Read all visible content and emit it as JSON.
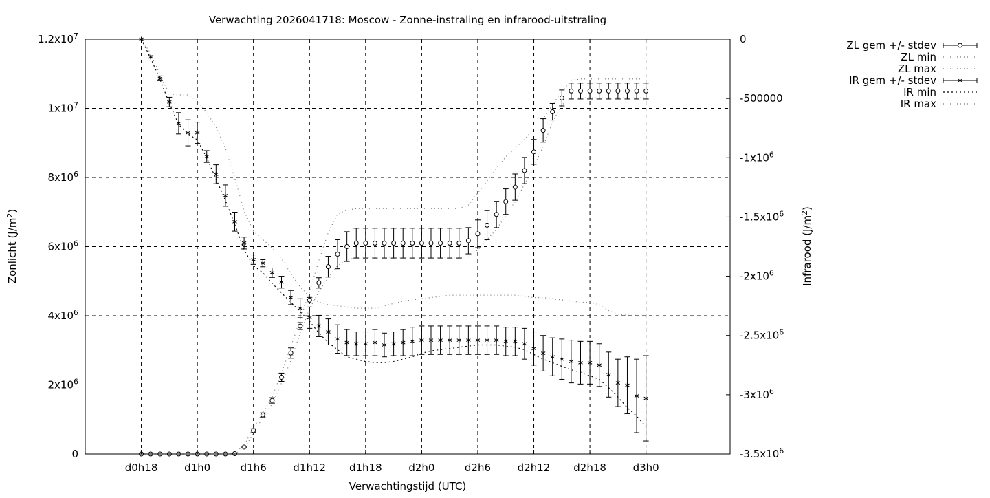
{
  "chart_data": {
    "type": "line",
    "title": "Verwachting 2026041718: Moscow - Zonne-instraling en infrarood-uitstraling",
    "xlabel": "Verwachtingstijd (UTC)",
    "ylabel": "Zonlicht (J/m2)",
    "y2label": "Infrarood (J/m2)",
    "x_unit": "hours since d0h18",
    "xlim": [
      -6,
      63
    ],
    "ylim": [
      0,
      12000000
    ],
    "y2lim": [
      -3500000,
      0
    ],
    "grid": true,
    "legend_position": "top-right outside plot",
    "x_ticks": [
      {
        "x": 0,
        "label": "d0h18"
      },
      {
        "x": 6,
        "label": "d1h0"
      },
      {
        "x": 12,
        "label": "d1h6"
      },
      {
        "x": 18,
        "label": "d1h12"
      },
      {
        "x": 24,
        "label": "d1h18"
      },
      {
        "x": 30,
        "label": "d2h0"
      },
      {
        "x": 36,
        "label": "d2h6"
      },
      {
        "x": 42,
        "label": "d2h12"
      },
      {
        "x": 48,
        "label": "d2h18"
      },
      {
        "x": 54,
        "label": "d3h0"
      }
    ],
    "y_ticks": [
      {
        "value": 0,
        "mant": "0",
        "exp": ""
      },
      {
        "value": 2000000,
        "mant": "2x10",
        "exp": "6"
      },
      {
        "value": 4000000,
        "mant": "4x10",
        "exp": "6"
      },
      {
        "value": 6000000,
        "mant": "6x10",
        "exp": "6"
      },
      {
        "value": 8000000,
        "mant": "8x10",
        "exp": "6"
      },
      {
        "value": 10000000,
        "mant": "1x10",
        "exp": "7"
      },
      {
        "value": 12000000,
        "mant": "1.2x10",
        "exp": "7"
      }
    ],
    "y2_ticks": [
      {
        "value": 0,
        "mant": "0",
        "exp": ""
      },
      {
        "value": -500000,
        "mant": "-500000",
        "exp": ""
      },
      {
        "value": -1000000,
        "mant": "-1x10",
        "exp": "6"
      },
      {
        "value": -1500000,
        "mant": "-1.5x10",
        "exp": "6"
      },
      {
        "value": -2000000,
        "mant": "-2x10",
        "exp": "6"
      },
      {
        "value": -2500000,
        "mant": "-2.5x10",
        "exp": "6"
      },
      {
        "value": -3000000,
        "mant": "-3x10",
        "exp": "6"
      },
      {
        "value": -3500000,
        "mant": "-3.5x10",
        "exp": "6"
      }
    ],
    "x": [
      0,
      1,
      2,
      3,
      4,
      5,
      6,
      7,
      8,
      9,
      10,
      11,
      12,
      13,
      14,
      15,
      16,
      17,
      18,
      19,
      20,
      21,
      22,
      23,
      24,
      25,
      26,
      27,
      28,
      29,
      30,
      31,
      32,
      33,
      34,
      35,
      36,
      37,
      38,
      39,
      40,
      41,
      42,
      43,
      44,
      45,
      46,
      47,
      48,
      49,
      50,
      51,
      52,
      53,
      54
    ],
    "series": [
      {
        "name": "ZL gem +/- stdev",
        "axis": "y",
        "style": "errorbars-circle",
        "values": [
          0,
          0,
          0,
          0,
          0,
          0,
          0,
          0,
          0,
          0,
          10000,
          200000,
          680000,
          1130000,
          1550000,
          2220000,
          2920000,
          3700000,
          4450000,
          4950000,
          5420000,
          5780000,
          6000000,
          6100000,
          6100000,
          6100000,
          6100000,
          6100000,
          6100000,
          6100000,
          6100000,
          6100000,
          6100000,
          6100000,
          6100000,
          6170000,
          6370000,
          6620000,
          6930000,
          7300000,
          7720000,
          8200000,
          8740000,
          9360000,
          9900000,
          10300000,
          10500000,
          10500000,
          10500000,
          10500000,
          10500000,
          10500000,
          10500000,
          10500000,
          10500000
        ],
        "stdev": [
          0,
          0,
          0,
          0,
          0,
          0,
          0,
          0,
          0,
          0,
          5000,
          20000,
          50000,
          60000,
          80000,
          120000,
          150000,
          100000,
          80000,
          150000,
          300000,
          420000,
          430000,
          430000,
          430000,
          430000,
          430000,
          430000,
          430000,
          430000,
          430000,
          430000,
          430000,
          430000,
          430000,
          380000,
          400000,
          420000,
          380000,
          370000,
          380000,
          380000,
          360000,
          340000,
          240000,
          230000,
          230000,
          230000,
          230000,
          230000,
          230000,
          230000,
          230000,
          230000,
          230000
        ]
      },
      {
        "name": "ZL min",
        "axis": "y",
        "style": "dotted",
        "values": [
          0,
          0,
          0,
          0,
          0,
          0,
          0,
          0,
          0,
          0,
          0,
          150000,
          600000,
          1050000,
          1450000,
          2050000,
          2700000,
          3500000,
          4200000,
          4700000,
          5100000,
          5450000,
          5600000,
          5700000,
          5700000,
          5700000,
          5700000,
          5700000,
          5700000,
          5700000,
          5700000,
          5700000,
          5700000,
          5700000,
          5700000,
          5700000,
          5900000,
          6200000,
          6500000,
          6900000,
          7300000,
          7800000,
          8300000,
          8900000,
          9600000,
          10100000,
          10300000,
          10300000,
          10300000,
          10300000,
          10300000,
          10300000,
          10300000,
          10300000,
          10300000
        ]
      },
      {
        "name": "ZL max",
        "axis": "y",
        "style": "dotted",
        "values": [
          0,
          0,
          0,
          0,
          0,
          0,
          0,
          0,
          0,
          0,
          30000,
          250000,
          750000,
          1200000,
          1650000,
          2350000,
          3100000,
          3900000,
          4700000,
          5600000,
          6400000,
          6950000,
          7050000,
          7100000,
          7100000,
          7100000,
          7100000,
          7100000,
          7100000,
          7100000,
          7100000,
          7100000,
          7100000,
          7100000,
          7100000,
          7200000,
          7550000,
          7900000,
          8250000,
          8600000,
          8850000,
          9100000,
          9400000,
          9700000,
          10100000,
          10500000,
          10800000,
          10850000,
          10850000,
          10850000,
          10850000,
          10850000,
          10850000,
          10850000,
          10850000
        ]
      },
      {
        "name": "IR gem +/- stdev",
        "axis": "y2",
        "style": "errorbars-star",
        "values": [
          0,
          -150000,
          -330000,
          -530000,
          -710000,
          -790000,
          -790000,
          -990000,
          -1140000,
          -1320000,
          -1540000,
          -1720000,
          -1860000,
          -1890000,
          -1970000,
          -2050000,
          -2180000,
          -2270000,
          -2350000,
          -2420000,
          -2470000,
          -2530000,
          -2560000,
          -2570000,
          -2570000,
          -2560000,
          -2580000,
          -2570000,
          -2560000,
          -2550000,
          -2540000,
          -2540000,
          -2540000,
          -2540000,
          -2540000,
          -2540000,
          -2540000,
          -2540000,
          -2540000,
          -2550000,
          -2550000,
          -2570000,
          -2610000,
          -2650000,
          -2680000,
          -2700000,
          -2720000,
          -2730000,
          -2730000,
          -2750000,
          -2830000,
          -2900000,
          -2920000,
          -3010000,
          -3030000
        ],
        "stdev": [
          0,
          10000,
          20000,
          40000,
          90000,
          110000,
          90000,
          50000,
          80000,
          90000,
          80000,
          50000,
          40000,
          30000,
          40000,
          50000,
          60000,
          80000,
          90000,
          90000,
          110000,
          120000,
          110000,
          100000,
          100000,
          110000,
          100000,
          100000,
          110000,
          120000,
          120000,
          120000,
          120000,
          120000,
          120000,
          120000,
          120000,
          120000,
          120000,
          120000,
          120000,
          130000,
          140000,
          150000,
          160000,
          170000,
          180000,
          180000,
          180000,
          180000,
          190000,
          200000,
          240000,
          310000,
          360000
        ]
      },
      {
        "name": "IR min",
        "axis": "y2",
        "style": "dotted",
        "values": [
          0,
          -160000,
          -340000,
          -540000,
          -720000,
          -800000,
          -850000,
          -1000000,
          -1180000,
          -1360000,
          -1560000,
          -1780000,
          -1910000,
          -1970000,
          -2060000,
          -2140000,
          -2220000,
          -2300000,
          -2380000,
          -2480000,
          -2560000,
          -2620000,
          -2680000,
          -2700000,
          -2720000,
          -2730000,
          -2730000,
          -2720000,
          -2700000,
          -2680000,
          -2650000,
          -2630000,
          -2620000,
          -2610000,
          -2600000,
          -2590000,
          -2580000,
          -2580000,
          -2580000,
          -2590000,
          -2600000,
          -2620000,
          -2660000,
          -2700000,
          -2730000,
          -2760000,
          -2790000,
          -2810000,
          -2840000,
          -2870000,
          -2940000,
          -3020000,
          -3110000,
          -3180000,
          -3270000
        ]
      },
      {
        "name": "IR max",
        "axis": "y2",
        "style": "dotted",
        "values": [
          0,
          -120000,
          -300000,
          -460000,
          -470000,
          -470000,
          -520000,
          -620000,
          -740000,
          -920000,
          -1170000,
          -1450000,
          -1620000,
          -1690000,
          -1760000,
          -1850000,
          -1980000,
          -2090000,
          -2170000,
          -2220000,
          -2240000,
          -2250000,
          -2260000,
          -2270000,
          -2270000,
          -2270000,
          -2250000,
          -2230000,
          -2210000,
          -2200000,
          -2190000,
          -2180000,
          -2170000,
          -2160000,
          -2160000,
          -2160000,
          -2160000,
          -2160000,
          -2160000,
          -2160000,
          -2160000,
          -2170000,
          -2180000,
          -2180000,
          -2190000,
          -2200000,
          -2210000,
          -2220000,
          -2220000,
          -2240000,
          -2290000,
          -2320000,
          -2330000,
          -2330000,
          -2340000
        ]
      }
    ]
  }
}
